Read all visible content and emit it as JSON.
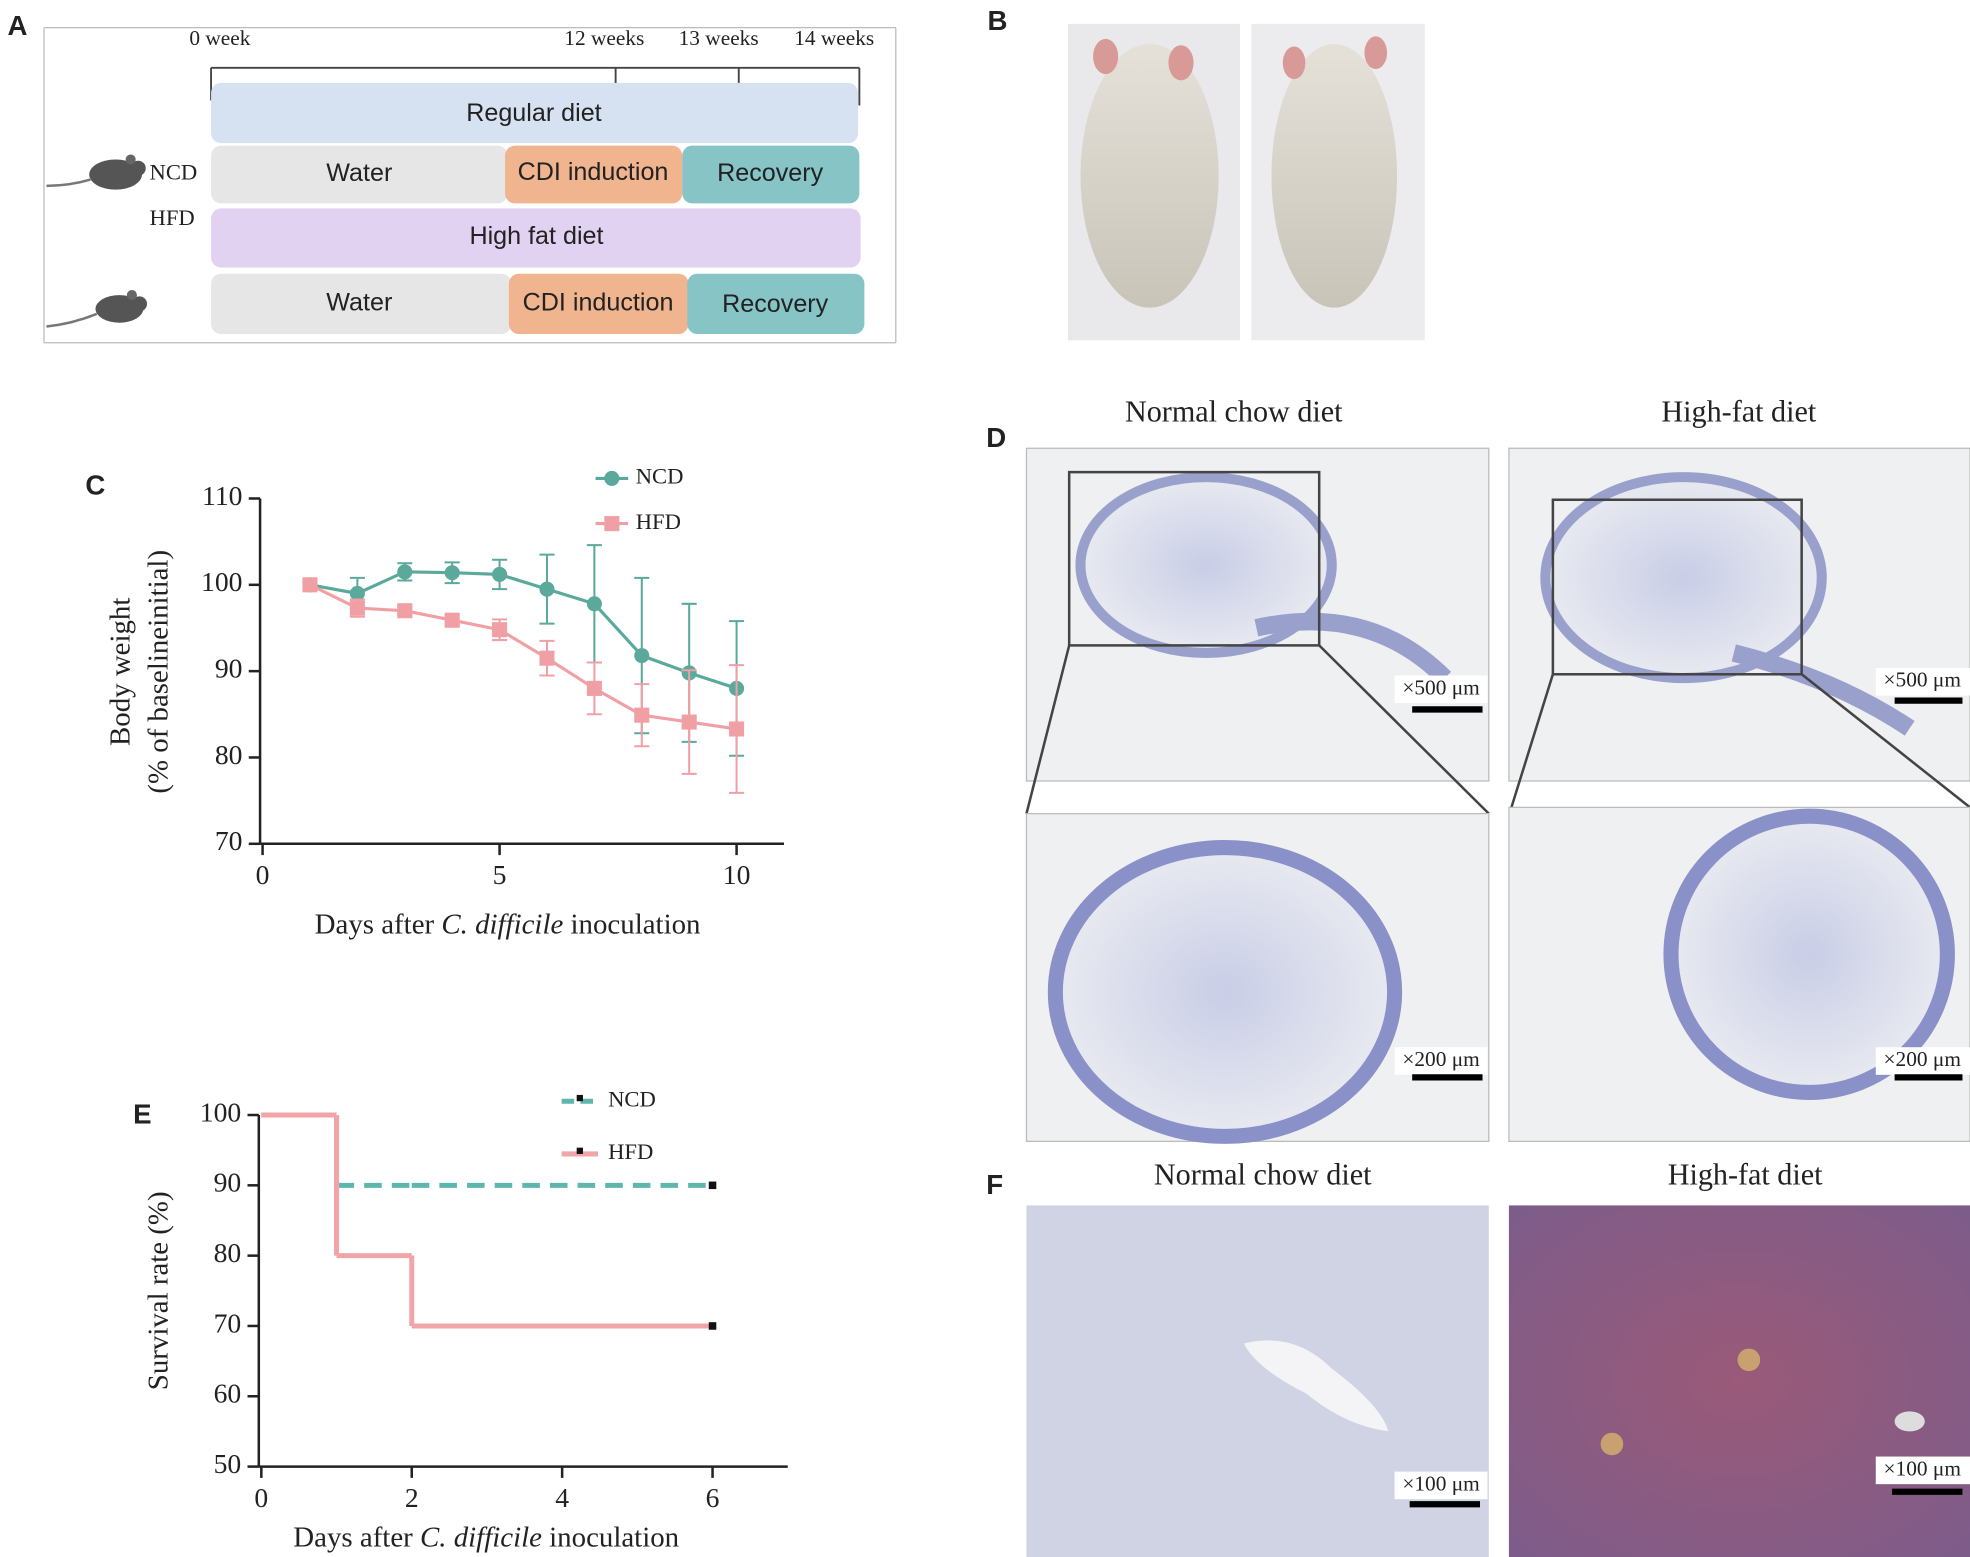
{
  "panel_labels": [
    "A",
    "B",
    "C",
    "D",
    "E",
    "F"
  ],
  "timeline": {
    "marks": [
      "0 week",
      "12 weeks",
      "13 weeks",
      "14 weeks"
    ],
    "groups": [
      "NCD",
      "HFD"
    ],
    "diets": [
      "Regular diet",
      "High fat diet"
    ],
    "ncd_phases": [
      "Water",
      "CDI induction",
      "Recovery"
    ],
    "hfd_phases": [
      "Water",
      "CDI induction",
      "Recovery"
    ]
  },
  "histology": {
    "titles": [
      "Normal chow diet",
      "High-fat diet"
    ],
    "scales": [
      "×500 μm",
      "×500 μm",
      "×200 μm",
      "×200 μm"
    ]
  },
  "liver": {
    "titles": [
      "Normal chow diet",
      "High-fat diet"
    ],
    "scales": [
      "×100 μm",
      "×100 μm"
    ]
  },
  "chart_data": [
    {
      "type": "line",
      "xlabel": [
        "Days after ",
        "C. difficile",
        " inoculation"
      ],
      "ylabel": [
        "Body weight",
        "(% of baselineinitial)"
      ],
      "x": [
        1,
        2,
        3,
        4,
        5,
        6,
        7,
        8,
        9,
        10
      ],
      "series": [
        {
          "name": "NCD",
          "color": "#5aa99b",
          "marker": "circle",
          "values": [
            100,
            99,
            101.5,
            101.4,
            101.2,
            99.5,
            97.8,
            91.8,
            89.8,
            88
          ],
          "errors": [
            0.3,
            1.8,
            1,
            1.2,
            1.7,
            4,
            6.8,
            9,
            8,
            7.8
          ]
        },
        {
          "name": "HFD",
          "color": "#f0a0a4",
          "marker": "square",
          "values": [
            100,
            97.3,
            97,
            95.9,
            94.8,
            91.5,
            88,
            84.9,
            84.1,
            83.3
          ],
          "errors": [
            0.3,
            1,
            0.5,
            0.5,
            1.2,
            2,
            3,
            3.6,
            6,
            7.4
          ]
        }
      ],
      "xlim": [
        0,
        11
      ],
      "xticks": [
        0,
        5,
        10
      ],
      "ylim": [
        70,
        110
      ],
      "yticks": [
        70,
        80,
        90,
        100,
        110
      ]
    },
    {
      "type": "step",
      "xlabel": [
        "Days after ",
        "C. difficile",
        " inoculation"
      ],
      "ylabel": [
        "Survival rate (%)"
      ],
      "x": [
        0,
        1,
        2,
        6
      ],
      "series": [
        {
          "name": "NCD",
          "color": "#5fb6ad",
          "dashed": true,
          "values": [
            100,
            90,
            90,
            90
          ]
        },
        {
          "name": "HFD",
          "color": "#f2a5a8",
          "dashed": false,
          "values": [
            100,
            80,
            70,
            70
          ]
        }
      ],
      "xlim": [
        0,
        7
      ],
      "xticks": [
        0,
        2,
        4,
        6
      ],
      "ylim": [
        50,
        100
      ],
      "yticks": [
        50,
        60,
        70,
        80,
        90,
        100
      ]
    }
  ]
}
